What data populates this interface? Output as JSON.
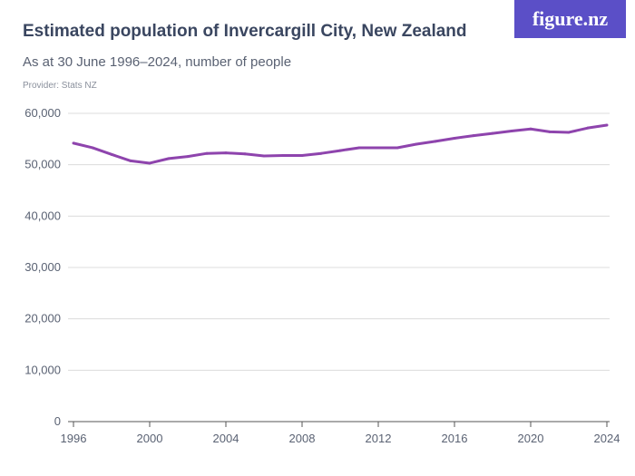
{
  "header": {
    "title": "Estimated population of Invercargill City, New Zealand",
    "subtitle": "As at 30 June 1996–2024, number of people",
    "provider": "Provider: Stats NZ",
    "logo": "figure.nz"
  },
  "chart_data": {
    "type": "line",
    "title": "Estimated population of Invercargill City, New Zealand",
    "subtitle": "As at 30 June 1996–2024, number of people",
    "xlabel": "",
    "ylabel": "",
    "x": [
      1996,
      1997,
      1998,
      1999,
      2000,
      2001,
      2002,
      2003,
      2004,
      2005,
      2006,
      2007,
      2008,
      2009,
      2010,
      2011,
      2012,
      2013,
      2014,
      2015,
      2016,
      2017,
      2018,
      2019,
      2020,
      2021,
      2022,
      2023,
      2024
    ],
    "series": [
      {
        "values": [
          54200,
          53300,
          52000,
          50750,
          50300,
          51200,
          51600,
          52200,
          52300,
          52100,
          51700,
          51800,
          51800,
          52200,
          52750,
          53300,
          53300,
          53300,
          54000,
          54550,
          55150,
          55650,
          56100,
          56550,
          56950,
          56400,
          56300,
          57150,
          57700
        ],
        "color": "#8e44ad"
      }
    ],
    "xlim": [
      1996,
      2024
    ],
    "ylim": [
      0,
      60000
    ],
    "x_ticks": [
      "1996",
      "2000",
      "2004",
      "2008",
      "2012",
      "2016",
      "2020",
      "2024"
    ],
    "y_ticks": [
      "0",
      "10,000",
      "20,000",
      "30,000",
      "40,000",
      "50,000",
      "60,000"
    ],
    "grid": true,
    "legend": "none"
  }
}
